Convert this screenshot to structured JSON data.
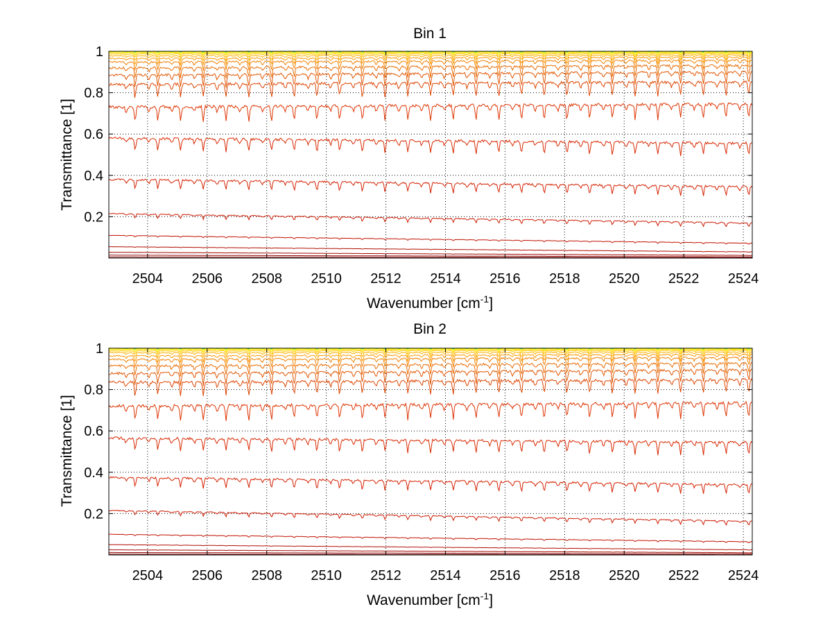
{
  "chart_data": [
    {
      "type": "line",
      "title": "Bin 1",
      "xlabel": "Wavenumber [cm",
      "xlabel_sup": "-1",
      "xlabel_end": "]",
      "ylabel": "Transmittance [1]",
      "xlim": [
        2502.7,
        2524.3
      ],
      "ylim": [
        0,
        1
      ],
      "xticks": [
        2504,
        2506,
        2508,
        2510,
        2512,
        2514,
        2516,
        2518,
        2520,
        2522,
        2524
      ],
      "yticks": [
        0.2,
        0.4,
        0.6,
        0.8,
        1
      ],
      "ytick_labels": [
        "0.2",
        "0.4",
        "0.6",
        "0.8",
        "1"
      ],
      "grid": true,
      "line_pattern": "absorption dips every ~0.76 cm-1; curves fan from ~1 (yellow) down to ~0 (dark red)",
      "series": [
        {
          "color": "#00c8a0",
          "start": 1.0,
          "end": 1.0,
          "depth": 0.002
        },
        {
          "color": "#60e060",
          "start": 0.999,
          "end": 0.999,
          "depth": 0.004
        },
        {
          "color": "#ffff00",
          "start": 0.997,
          "end": 0.997,
          "depth": 0.006
        },
        {
          "color": "#ffe000",
          "start": 0.993,
          "end": 0.994,
          "depth": 0.01
        },
        {
          "color": "#ffc800",
          "start": 0.987,
          "end": 0.989,
          "depth": 0.015
        },
        {
          "color": "#ffb000",
          "start": 0.978,
          "end": 0.982,
          "depth": 0.022
        },
        {
          "color": "#ff9a00",
          "start": 0.965,
          "end": 0.972,
          "depth": 0.03
        },
        {
          "color": "#f08000",
          "start": 0.948,
          "end": 0.957,
          "depth": 0.04
        },
        {
          "color": "#e86a00",
          "start": 0.92,
          "end": 0.932,
          "depth": 0.05
        },
        {
          "color": "#e05500",
          "start": 0.885,
          "end": 0.9,
          "depth": 0.058
        },
        {
          "color": "#dd4400",
          "start": 0.84,
          "end": 0.852,
          "depth": 0.065
        },
        {
          "color": "#dd3300",
          "start": 0.73,
          "end": 0.745,
          "depth": 0.07
        },
        {
          "color": "#d82800",
          "start": 0.58,
          "end": 0.555,
          "depth": 0.06
        },
        {
          "color": "#d42000",
          "start": 0.38,
          "end": 0.345,
          "depth": 0.045
        },
        {
          "color": "#cc1800",
          "start": 0.215,
          "end": 0.17,
          "depth": 0.02
        },
        {
          "color": "#c01000",
          "start": 0.11,
          "end": 0.072,
          "depth": 0.006
        },
        {
          "color": "#b00c00",
          "start": 0.055,
          "end": 0.03,
          "depth": 0.002
        },
        {
          "color": "#a00800",
          "start": 0.028,
          "end": 0.013,
          "depth": 0.001
        },
        {
          "color": "#900000",
          "start": 0.014,
          "end": 0.006,
          "depth": 0.0
        },
        {
          "color": "#800000",
          "start": 0.005,
          "end": 0.002,
          "depth": 0.0
        }
      ]
    },
    {
      "type": "line",
      "title": "Bin 2",
      "xlabel": "Wavenumber [cm",
      "xlabel_sup": "-1",
      "xlabel_end": "]",
      "ylabel": "Transmittance [1]",
      "xlim": [
        2502.7,
        2524.3
      ],
      "ylim": [
        0,
        1
      ],
      "xticks": [
        2504,
        2506,
        2508,
        2510,
        2512,
        2514,
        2516,
        2518,
        2520,
        2522,
        2524
      ],
      "yticks": [
        0.2,
        0.4,
        0.6,
        0.8,
        1
      ],
      "ytick_labels": [
        "0.2",
        "0.4",
        "0.6",
        "0.8",
        "1"
      ],
      "grid": true,
      "line_pattern": "absorption dips every ~0.76 cm-1; curves fan from ~1 (yellow) down to ~0 (dark red)",
      "series": [
        {
          "color": "#00c8a0",
          "start": 1.0,
          "end": 1.0,
          "depth": 0.002
        },
        {
          "color": "#60e060",
          "start": 0.999,
          "end": 0.999,
          "depth": 0.004
        },
        {
          "color": "#ffff00",
          "start": 0.997,
          "end": 0.997,
          "depth": 0.006
        },
        {
          "color": "#ffe000",
          "start": 0.993,
          "end": 0.994,
          "depth": 0.01
        },
        {
          "color": "#ffc800",
          "start": 0.987,
          "end": 0.989,
          "depth": 0.015
        },
        {
          "color": "#ffb000",
          "start": 0.978,
          "end": 0.981,
          "depth": 0.022
        },
        {
          "color": "#ff9a00",
          "start": 0.963,
          "end": 0.97,
          "depth": 0.03
        },
        {
          "color": "#f08000",
          "start": 0.945,
          "end": 0.955,
          "depth": 0.04
        },
        {
          "color": "#e86a00",
          "start": 0.915,
          "end": 0.928,
          "depth": 0.05
        },
        {
          "color": "#e05500",
          "start": 0.878,
          "end": 0.895,
          "depth": 0.058
        },
        {
          "color": "#dd4400",
          "start": 0.835,
          "end": 0.848,
          "depth": 0.065
        },
        {
          "color": "#dd3300",
          "start": 0.72,
          "end": 0.735,
          "depth": 0.07
        },
        {
          "color": "#d82800",
          "start": 0.565,
          "end": 0.545,
          "depth": 0.06
        },
        {
          "color": "#d42000",
          "start": 0.375,
          "end": 0.34,
          "depth": 0.045
        },
        {
          "color": "#cc1800",
          "start": 0.215,
          "end": 0.163,
          "depth": 0.02
        },
        {
          "color": "#c01000",
          "start": 0.1,
          "end": 0.064,
          "depth": 0.006
        },
        {
          "color": "#b00c00",
          "start": 0.05,
          "end": 0.025,
          "depth": 0.002
        },
        {
          "color": "#a00800",
          "start": 0.025,
          "end": 0.011,
          "depth": 0.001
        },
        {
          "color": "#900000",
          "start": 0.012,
          "end": 0.005,
          "depth": 0.0
        },
        {
          "color": "#800000",
          "start": 0.004,
          "end": 0.001,
          "depth": 0.0
        }
      ]
    }
  ]
}
